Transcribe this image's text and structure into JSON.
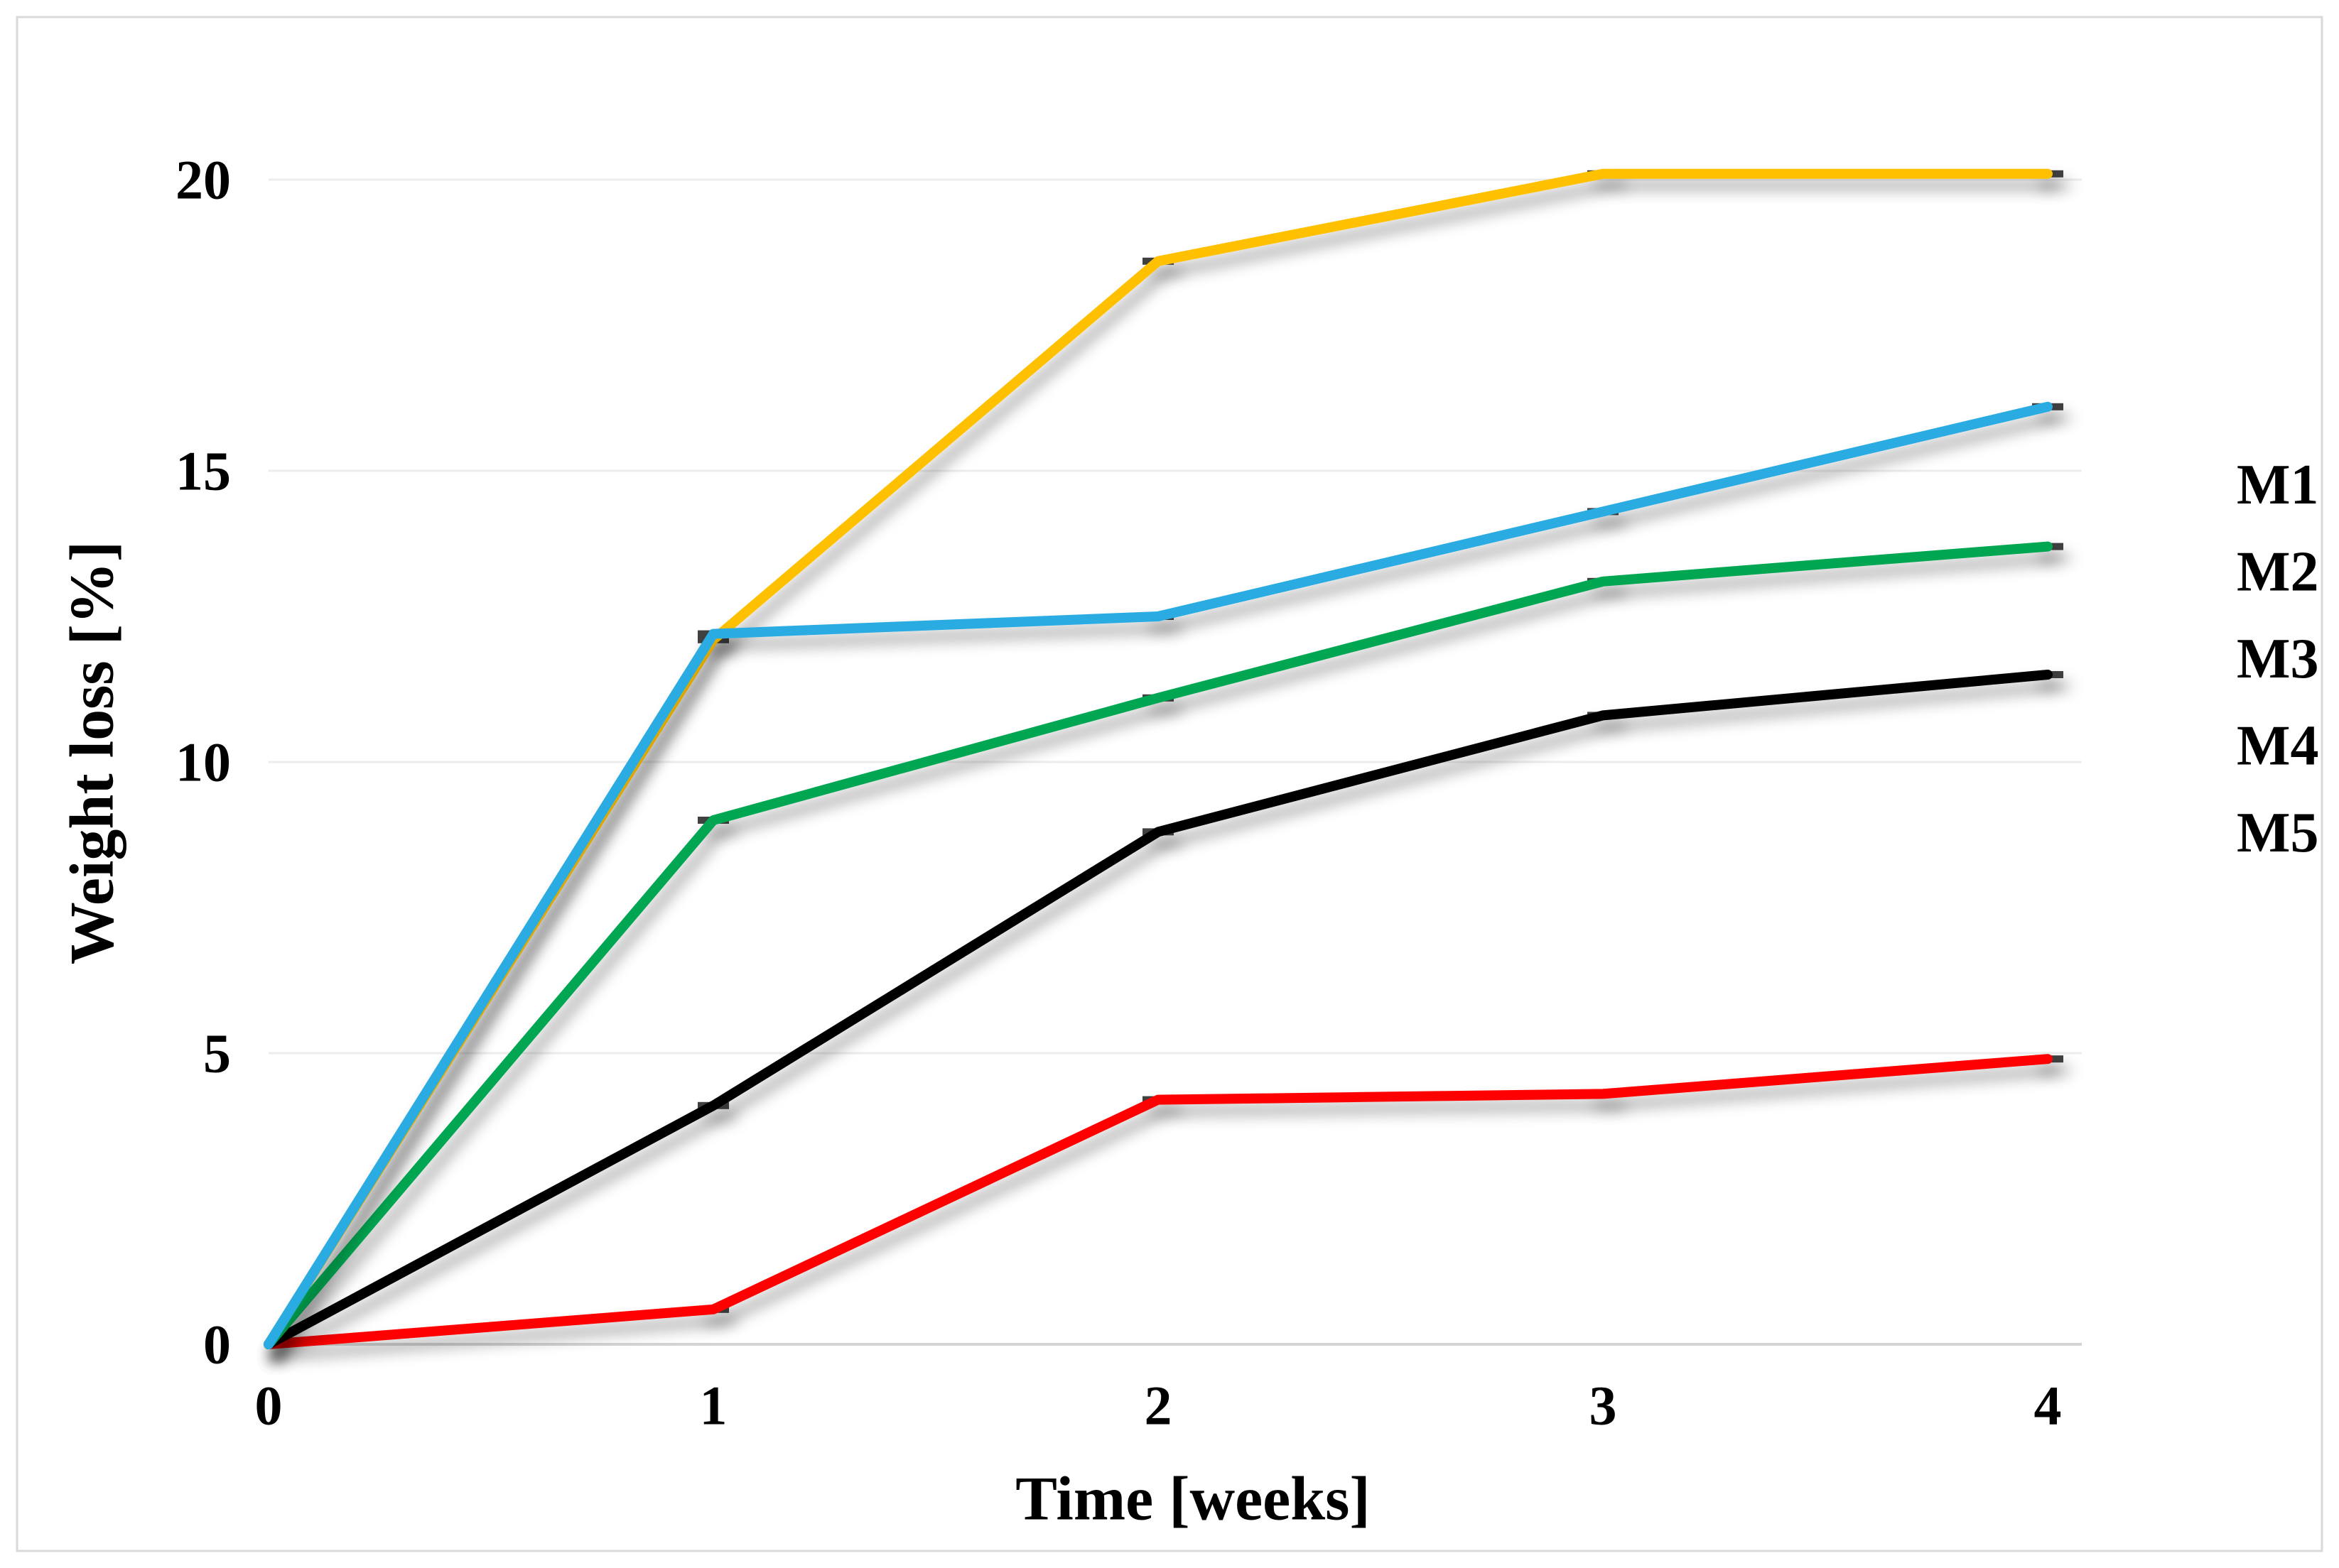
{
  "figure": {
    "background": "#FFFFFF",
    "border_color": "#D9D9D9"
  },
  "chart_data": {
    "type": "line",
    "title": "",
    "xlabel": "Time [weeks]",
    "ylabel": "Weight loss [%]",
    "x": [
      0,
      1,
      2,
      3,
      4
    ],
    "xticks": [
      "0",
      "1",
      "2",
      "3",
      "4"
    ],
    "yticks": [
      0,
      5,
      10,
      15,
      20
    ],
    "xlim": [
      0,
      4
    ],
    "ylim": [
      0,
      20
    ],
    "grid": "horizontal",
    "gridline_color": "#EDEDED",
    "axis_line_color": "#D4D4D4",
    "marker": "dash",
    "marker_color": "#3F3F3F",
    "legend_position": "right",
    "series": [
      {
        "name": "M1",
        "color": "#FF0000",
        "values": [
          0,
          0.6,
          4.2,
          4.3,
          4.9
        ]
      },
      {
        "name": "M2",
        "color": "#FFC000",
        "values": [
          0,
          12.1,
          18.6,
          20.1,
          20.1
        ]
      },
      {
        "name": "M3",
        "color": "#000000",
        "values": [
          0,
          4.1,
          8.8,
          10.8,
          11.5
        ]
      },
      {
        "name": "M4",
        "color": "#00A651",
        "values": [
          0,
          9.0,
          11.1,
          13.1,
          13.7
        ]
      },
      {
        "name": "M5",
        "color": "#29ABE2",
        "values": [
          0,
          12.2,
          12.5,
          14.3,
          16.1
        ]
      }
    ]
  }
}
